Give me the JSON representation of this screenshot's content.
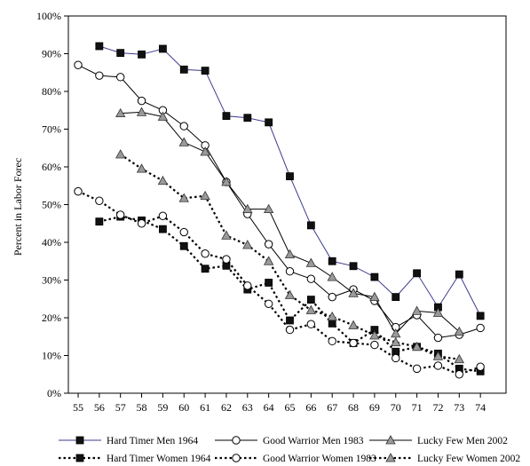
{
  "chart_data": {
    "type": "line",
    "title": "",
    "xlabel": "",
    "ylabel": "Percent in Labor Forec",
    "x": [
      55,
      56,
      57,
      58,
      59,
      60,
      61,
      62,
      63,
      64,
      65,
      66,
      67,
      68,
      69,
      70,
      71,
      72,
      73,
      74
    ],
    "xlim": [
      55,
      74
    ],
    "ylim": [
      0,
      100
    ],
    "y_ticks": [
      "0%",
      "10%",
      "20%",
      "30%",
      "40%",
      "50%",
      "60%",
      "70%",
      "80%",
      "90%",
      "100%"
    ],
    "grid": false,
    "legend_position": "bottom",
    "series": [
      {
        "name": "Hard Timer Men 1964",
        "line": "solid",
        "marker": "square",
        "color": "#3b3b8c",
        "points": [
          [
            56,
            92
          ],
          [
            57,
            90.2
          ],
          [
            58,
            89.8
          ],
          [
            59,
            91.3
          ],
          [
            60,
            85.8
          ],
          [
            61,
            85.5
          ],
          [
            62,
            73.5
          ],
          [
            63,
            73
          ],
          [
            64,
            71.8
          ],
          [
            65,
            57.5
          ],
          [
            66,
            44.5
          ],
          [
            67,
            35
          ],
          [
            68,
            33.7
          ],
          [
            69,
            30.8
          ],
          [
            70,
            25.5
          ],
          [
            71,
            31.8
          ],
          [
            72,
            22.8
          ],
          [
            73,
            31.5
          ],
          [
            74,
            20.5
          ]
        ]
      },
      {
        "name": "Good Warrior Men 1983",
        "line": "solid",
        "marker": "circle",
        "color": "#000000",
        "points": [
          [
            55,
            87
          ],
          [
            56,
            84.2
          ],
          [
            57,
            83.8
          ],
          [
            58,
            77.5
          ],
          [
            59,
            75
          ],
          [
            60,
            70.8
          ],
          [
            61,
            65.7
          ],
          [
            62,
            56
          ],
          [
            63,
            47.5
          ],
          [
            64,
            39.5
          ],
          [
            65,
            32.3
          ],
          [
            66,
            30.3
          ],
          [
            67,
            25.5
          ],
          [
            68,
            27.5
          ],
          [
            69,
            24.5
          ],
          [
            70,
            17.5
          ],
          [
            71,
            20.7
          ],
          [
            72,
            14.7
          ],
          [
            73,
            15.5
          ],
          [
            74,
            17.3
          ]
        ]
      },
      {
        "name": "Lucky Few Men 2002",
        "line": "solid",
        "marker": "triangle",
        "color": "#000000",
        "points": [
          [
            57,
            74.2
          ],
          [
            58,
            74.5
          ],
          [
            59,
            73.3
          ],
          [
            60,
            66.5
          ],
          [
            61,
            64
          ],
          [
            62,
            56
          ],
          [
            63,
            48.8
          ],
          [
            64,
            48.8
          ],
          [
            65,
            36.8
          ],
          [
            66,
            34.5
          ],
          [
            67,
            30.8
          ],
          [
            68,
            26.5
          ],
          [
            69,
            25.5
          ],
          [
            70,
            15.8
          ],
          [
            71,
            21.8
          ],
          [
            72,
            21.3
          ],
          [
            73,
            16.3
          ]
        ]
      },
      {
        "name": "Hard Timer Women 1964",
        "line": "dotted",
        "marker": "square",
        "color": "#000000",
        "points": [
          [
            56,
            45.5
          ],
          [
            57,
            46.8
          ],
          [
            58,
            45.8
          ],
          [
            59,
            43.5
          ],
          [
            60,
            39
          ],
          [
            61,
            33
          ],
          [
            62,
            33.8
          ],
          [
            63,
            27.5
          ],
          [
            64,
            29.3
          ],
          [
            65,
            19.3
          ],
          [
            66,
            24.8
          ],
          [
            67,
            18.5
          ],
          [
            68,
            13.3
          ],
          [
            69,
            16.8
          ],
          [
            70,
            11
          ],
          [
            71,
            12.3
          ],
          [
            72,
            10.5
          ],
          [
            73,
            6.5
          ],
          [
            74,
            5.8
          ]
        ]
      },
      {
        "name": "Good Warrior Women 1983",
        "line": "dotted",
        "marker": "circle",
        "color": "#000000",
        "points": [
          [
            55,
            53.5
          ],
          [
            56,
            51
          ],
          [
            57,
            47.3
          ],
          [
            58,
            45
          ],
          [
            59,
            47
          ],
          [
            60,
            42.7
          ],
          [
            61,
            37
          ],
          [
            62,
            35.5
          ],
          [
            63,
            28.5
          ],
          [
            64,
            23.7
          ],
          [
            65,
            16.8
          ],
          [
            66,
            18.3
          ],
          [
            67,
            13.8
          ],
          [
            68,
            13.3
          ],
          [
            69,
            12.8
          ],
          [
            70,
            9.3
          ],
          [
            71,
            6.5
          ],
          [
            72,
            7.3
          ],
          [
            73,
            5
          ],
          [
            74,
            7
          ]
        ]
      },
      {
        "name": "Lucky Few Women 2002",
        "line": "dotted",
        "marker": "triangle",
        "color": "#000000",
        "points": [
          [
            57,
            63.3
          ],
          [
            58,
            59.5
          ],
          [
            59,
            56.3
          ],
          [
            60,
            51.7
          ],
          [
            61,
            52.3
          ],
          [
            62,
            41.8
          ],
          [
            63,
            39.3
          ],
          [
            64,
            35
          ],
          [
            65,
            26
          ],
          [
            66,
            22
          ],
          [
            67,
            20.3
          ],
          [
            68,
            18
          ],
          [
            69,
            15.3
          ],
          [
            70,
            13.5
          ],
          [
            71,
            12.3
          ],
          [
            72,
            9.8
          ],
          [
            73,
            9
          ]
        ]
      }
    ]
  }
}
